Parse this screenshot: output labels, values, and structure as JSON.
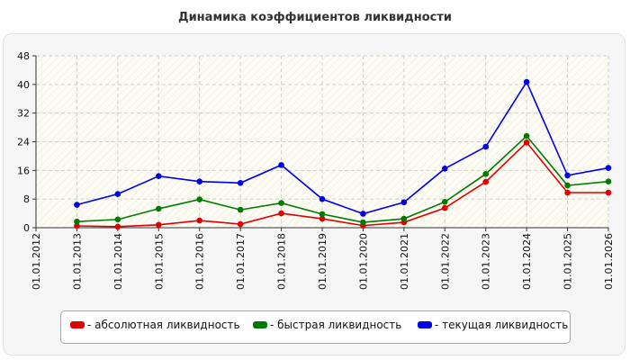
{
  "chart_data": {
    "type": "line",
    "title": "Динамика коэффициентов ликвидности",
    "xlabel": "",
    "ylabel": "",
    "categories": [
      "01.01.2012",
      "01.01.2013",
      "01.01.2014",
      "01.01.2015",
      "01.01.2016",
      "01.01.2017",
      "01.01.2018",
      "01.01.2019",
      "01.01.2020",
      "01.01.2021",
      "01.01.2022",
      "01.01.2023",
      "01.01.2024",
      "01.01.2025",
      "01.01.2026"
    ],
    "ylim": [
      0,
      48
    ],
    "yticks": [
      0,
      8,
      16,
      24,
      32,
      40,
      48
    ],
    "grid": true,
    "legend_position": "bottom",
    "series": [
      {
        "name": "- абсолютная ликвидность",
        "color": "#e00000",
        "values": [
          null,
          0.5,
          0.3,
          0.8,
          2.0,
          1.0,
          4.0,
          2.5,
          0.6,
          1.5,
          5.5,
          12.8,
          23.8,
          9.8,
          9.8
        ]
      },
      {
        "name": "- быстрая ликвидность",
        "color": "#007a00",
        "values": [
          null,
          1.7,
          2.3,
          5.3,
          7.9,
          5.0,
          6.9,
          3.8,
          1.5,
          2.5,
          7.2,
          15.0,
          25.6,
          11.8,
          12.9
        ]
      },
      {
        "name": "- текущая ликвидность",
        "color": "#0000e6",
        "values": [
          null,
          6.4,
          9.4,
          14.4,
          12.9,
          12.5,
          17.5,
          8.0,
          3.9,
          7.1,
          16.5,
          22.6,
          40.7,
          14.6,
          16.7
        ]
      }
    ]
  }
}
